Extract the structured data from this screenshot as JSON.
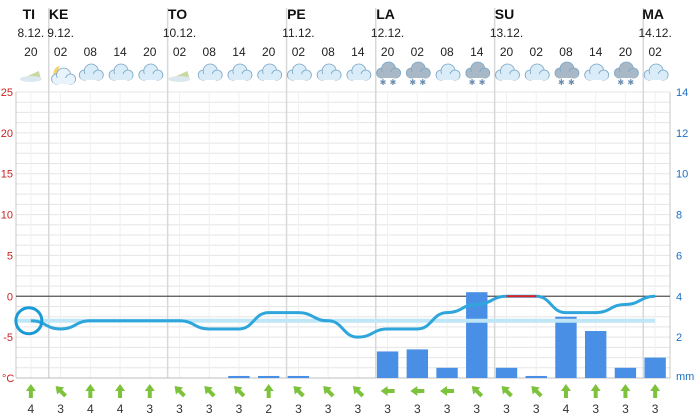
{
  "chart_data": {
    "type": "line",
    "title": "",
    "columns": [
      {
        "day": "TI",
        "date": "8.12.",
        "hour": "20",
        "icon": "moon-cloud-icon",
        "temp": -3,
        "precip": 0,
        "dew": -3,
        "wind_dir": "N",
        "wind": "4"
      },
      {
        "day": "KE",
        "date": "9.12.",
        "hour": "02",
        "icon": "moon-icon",
        "temp": -4,
        "precip": 0,
        "dew": -3,
        "wind_dir": "NW",
        "wind": "3"
      },
      {
        "day": "",
        "date": "",
        "hour": "08",
        "icon": "cloud-icon",
        "temp": -3,
        "precip": 0,
        "dew": -3,
        "wind_dir": "N",
        "wind": "4"
      },
      {
        "day": "",
        "date": "",
        "hour": "14",
        "icon": "cloud-icon",
        "temp": -3,
        "precip": 0,
        "dew": -3,
        "wind_dir": "N",
        "wind": "4"
      },
      {
        "day": "",
        "date": "",
        "hour": "20",
        "icon": "cloud-icon",
        "temp": -3,
        "precip": 0,
        "dew": -3,
        "wind_dir": "N",
        "wind": "3"
      },
      {
        "day": "TO",
        "date": "10.12.",
        "hour": "02",
        "icon": "moon-cloud-icon",
        "temp": -3,
        "precip": 0,
        "dew": -3,
        "wind_dir": "NW",
        "wind": "3"
      },
      {
        "day": "",
        "date": "",
        "hour": "08",
        "icon": "cloud-icon",
        "temp": -4,
        "precip": 0,
        "dew": -3,
        "wind_dir": "NW",
        "wind": "3"
      },
      {
        "day": "",
        "date": "",
        "hour": "14",
        "icon": "cloud-icon",
        "temp": -4,
        "precip": 0.1,
        "dew": -3,
        "wind_dir": "NW",
        "wind": "3"
      },
      {
        "day": "",
        "date": "",
        "hour": "20",
        "icon": "cloud-icon",
        "temp": -2,
        "precip": 0.1,
        "dew": -3,
        "wind_dir": "N",
        "wind": "2"
      },
      {
        "day": "PE",
        "date": "11.12.",
        "hour": "02",
        "icon": "cloud-icon",
        "temp": -2,
        "precip": 0.1,
        "dew": -3,
        "wind_dir": "NW",
        "wind": "3"
      },
      {
        "day": "",
        "date": "",
        "hour": "08",
        "icon": "cloud-icon",
        "temp": -3,
        "precip": 0,
        "dew": -3,
        "wind_dir": "NW",
        "wind": "3"
      },
      {
        "day": "",
        "date": "",
        "hour": "14",
        "icon": "cloud-icon",
        "temp": -5,
        "precip": 0,
        "dew": -3,
        "wind_dir": "NW",
        "wind": "3"
      },
      {
        "day": "LA",
        "date": "12.12.",
        "hour": "20",
        "icon": "snow-cloud-icon",
        "temp": -4,
        "precip": 1.3,
        "dew": -3,
        "wind_dir": "W",
        "wind": "3"
      },
      {
        "day": "",
        "date": "",
        "hour": "02",
        "icon": "snow-cloud-icon",
        "temp": -4,
        "precip": 1.4,
        "dew": -3,
        "wind_dir": "W",
        "wind": "3"
      },
      {
        "day": "",
        "date": "",
        "hour": "08",
        "icon": "cloud-icon",
        "temp": -2,
        "precip": 0.5,
        "dew": -3,
        "wind_dir": "W",
        "wind": "3"
      },
      {
        "day": "",
        "date": "",
        "hour": "14",
        "icon": "snow-cloud-icon",
        "temp": -1,
        "precip": 4.2,
        "dew": -3,
        "wind_dir": "NW",
        "wind": "3"
      },
      {
        "day": "SU",
        "date": "13.12.",
        "hour": "20",
        "icon": "cloud-icon",
        "temp": 0,
        "precip": 0.5,
        "dew": -3,
        "wind_dir": "NW",
        "wind": "3"
      },
      {
        "day": "",
        "date": "",
        "hour": "02",
        "icon": "cloud-icon",
        "temp": 0,
        "precip": 0.1,
        "dew": -3,
        "wind_dir": "NW",
        "wind": "3"
      },
      {
        "day": "",
        "date": "",
        "hour": "08",
        "icon": "snow-cloud-icon",
        "temp": -2,
        "precip": 3.0,
        "dew": -3,
        "wind_dir": "N",
        "wind": "4"
      },
      {
        "day": "",
        "date": "",
        "hour": "14",
        "icon": "cloud-icon",
        "temp": -2,
        "precip": 2.3,
        "dew": -3,
        "wind_dir": "N",
        "wind": "3"
      },
      {
        "day": "",
        "date": "",
        "hour": "20",
        "icon": "snow-cloud-icon",
        "temp": -1,
        "precip": 0.5,
        "dew": -3,
        "wind_dir": "N",
        "wind": "3"
      },
      {
        "day": "MA",
        "date": "14.12.",
        "hour": "02",
        "icon": "cloud-icon",
        "temp": 0,
        "precip": 1.0,
        "dew": -3,
        "wind_dir": "N",
        "wind": "3"
      }
    ],
    "temp_axis": {
      "ticks": [
        "25",
        "20",
        "15",
        "10",
        "5",
        "0",
        "-5"
      ],
      "unit": "°C",
      "ylim": [
        -10,
        25
      ]
    },
    "precip_axis": {
      "ticks": [
        "14",
        "12",
        "10",
        "8",
        "6",
        "4",
        "2"
      ],
      "unit": "mm",
      "ylim": [
        0,
        14
      ]
    }
  },
  "colors": {
    "temperature": "#2ea6dc",
    "temperature_above_zero": "#e02020",
    "precipitation": "#4a8fe6",
    "dew_point": "#bfe6f6",
    "wind_arrow": "#7cc23a",
    "left_axis": "#cc2222",
    "right_axis": "#1a6fc4",
    "grid": "#e5e5e5"
  }
}
